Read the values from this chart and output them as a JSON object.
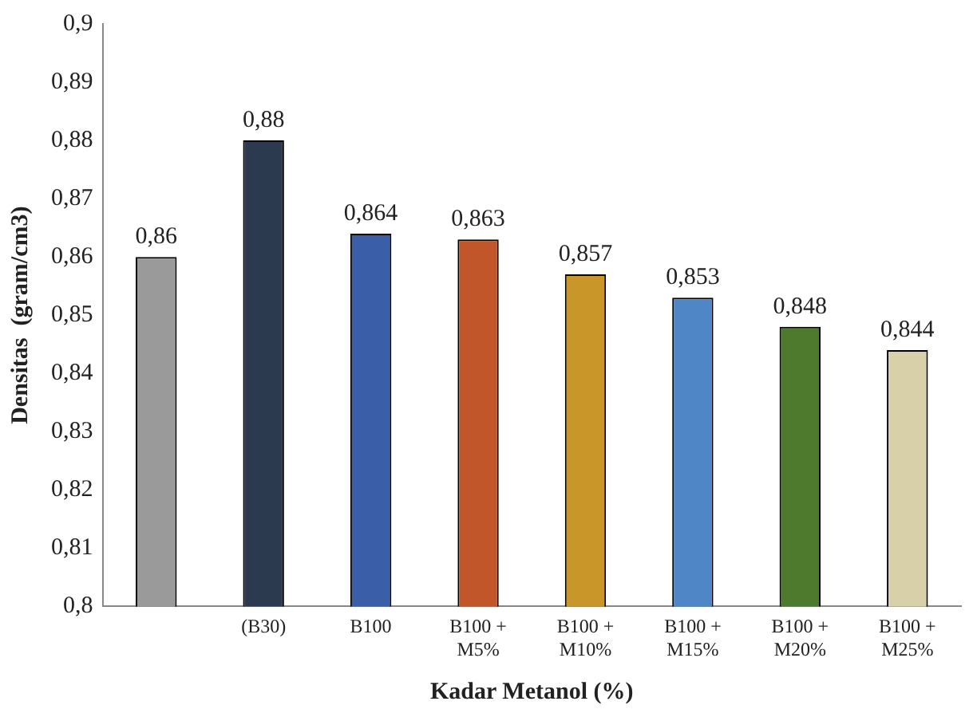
{
  "chart_data": {
    "type": "bar",
    "xlabel": "Kadar Metanol (%)",
    "ylabel": "Densitas  (gram/cm3)",
    "categories": [
      null,
      "(B30)",
      "B100",
      "B100 + M5%",
      "B100 + M10%",
      "B100 + M15%",
      "B100 + M20%",
      "B100 + M25%"
    ],
    "values": [
      0.86,
      0.88,
      0.864,
      0.863,
      0.857,
      0.853,
      0.848,
      0.844
    ],
    "colors": [
      "#9a9a9a",
      "#2b3a4f",
      "#3a5fa8",
      "#c0562a",
      "#c9962a",
      "#4f86c6",
      "#4e7a2e",
      "#d8d0a8"
    ],
    "value_labels": [
      "0,86",
      "0,88",
      "0,864",
      "0,863",
      "0,857",
      "0,853",
      "0,848",
      "0,844"
    ],
    "ylim": [
      0.8,
      0.9
    ],
    "yticks": [
      {
        "value": 0.8,
        "label": "0,8"
      },
      {
        "value": 0.81,
        "label": "0,81"
      },
      {
        "value": 0.82,
        "label": "0,82"
      },
      {
        "value": 0.83,
        "label": "0,83"
      },
      {
        "value": 0.84,
        "label": "0,84"
      },
      {
        "value": 0.85,
        "label": "0,85"
      },
      {
        "value": 0.86,
        "label": "0,86"
      },
      {
        "value": 0.87,
        "label": "0,87"
      },
      {
        "value": 0.88,
        "label": "0,88"
      },
      {
        "value": 0.89,
        "label": "0,89"
      },
      {
        "value": 0.9,
        "label": "0,9"
      }
    ],
    "grid": false,
    "legend": false
  }
}
